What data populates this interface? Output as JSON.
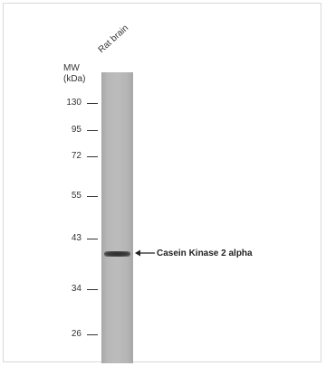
{
  "sample_label": "Rat brain",
  "mw_axis": {
    "title_line1": "MW",
    "title_line2": "(kDa)"
  },
  "markers": [
    {
      "label": "130",
      "kda": 130
    },
    {
      "label": "95",
      "kda": 95
    },
    {
      "label": "72",
      "kda": 72
    },
    {
      "label": "55",
      "kda": 55
    },
    {
      "label": "43",
      "kda": 43
    },
    {
      "label": "34",
      "kda": 34
    },
    {
      "label": "26",
      "kda": 26
    }
  ],
  "band_annotation": {
    "label": "Casein Kinase 2 alpha",
    "icon": "left-arrow-icon"
  },
  "colors": {
    "lane": "#b8b8b8",
    "band": "#333333",
    "text": "#333333"
  }
}
